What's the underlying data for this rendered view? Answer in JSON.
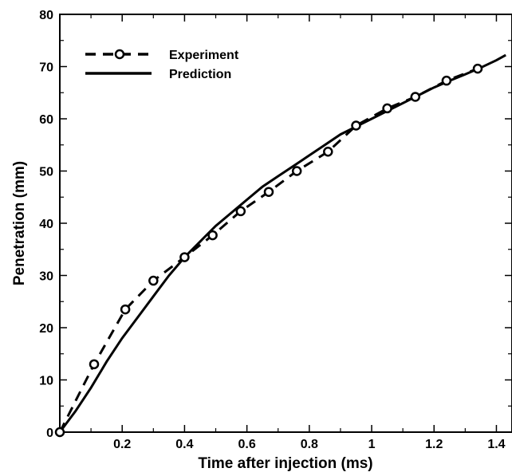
{
  "chart_data": {
    "type": "line",
    "title": "",
    "xlabel": "Time after injection (ms)",
    "ylabel": "Penetration (mm)",
    "xlim": [
      0,
      1.45
    ],
    "ylim": [
      0,
      80
    ],
    "x_ticks": [
      0.2,
      0.4,
      0.6,
      0.8,
      1,
      1.2,
      1.4
    ],
    "x_tick_labels": [
      "0.2",
      "0.4",
      "0.6",
      "0.8",
      "1",
      "1.2",
      "1.4"
    ],
    "y_ticks": [
      0,
      10,
      20,
      30,
      40,
      50,
      60,
      70,
      80
    ],
    "y_tick_labels": [
      "0",
      "10",
      "20",
      "30",
      "40",
      "50",
      "60",
      "70",
      "80"
    ],
    "grid": false,
    "legend_position": "top-left",
    "series": [
      {
        "name": "Experiment",
        "style": "dashed-with-circle-markers",
        "color": "#000000",
        "x": [
          0.0,
          0.11,
          0.21,
          0.3,
          0.4,
          0.49,
          0.58,
          0.67,
          0.76,
          0.86,
          0.95,
          1.05,
          1.14,
          1.24,
          1.34
        ],
        "y": [
          0.0,
          13.0,
          23.5,
          29.0,
          33.5,
          37.7,
          42.3,
          46.0,
          50.0,
          53.7,
          58.7,
          62.0,
          64.2,
          67.3,
          69.6
        ]
      },
      {
        "name": "Prediction",
        "style": "solid",
        "color": "#000000",
        "x": [
          0.0,
          0.05,
          0.1,
          0.15,
          0.2,
          0.25,
          0.3,
          0.35,
          0.4,
          0.45,
          0.5,
          0.55,
          0.6,
          0.65,
          0.7,
          0.75,
          0.8,
          0.85,
          0.9,
          0.95,
          1.0,
          1.05,
          1.1,
          1.15,
          1.2,
          1.25,
          1.3,
          1.35,
          1.4,
          1.43
        ],
        "y": [
          0.0,
          4.0,
          8.5,
          13.5,
          18.0,
          22.0,
          26.0,
          30.0,
          33.5,
          36.5,
          39.5,
          42.0,
          44.5,
          47.0,
          49.0,
          51.0,
          53.0,
          55.0,
          57.0,
          58.5,
          60.0,
          61.5,
          63.0,
          64.5,
          66.0,
          67.3,
          68.5,
          69.8,
          71.2,
          72.2
        ]
      }
    ]
  }
}
